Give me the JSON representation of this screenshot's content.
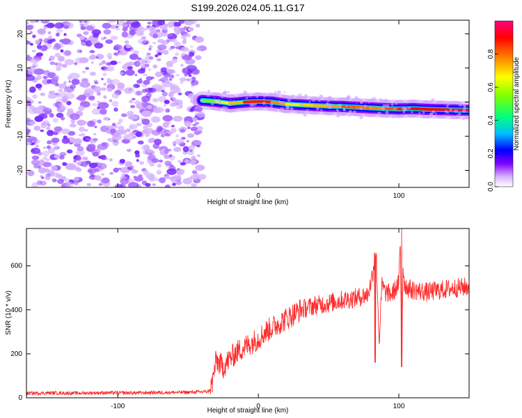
{
  "figure_title": "S199.2026.024.05.11.G17",
  "chart_data": [
    {
      "type": "heatmap",
      "panel": "spectrogram",
      "title": "S199.2026.024.05.11.G17",
      "xlabel": "Height of straight line (km)",
      "ylabel": "Frequency (Hz)",
      "xlim": [
        -165,
        150
      ],
      "ylim": [
        -25,
        24
      ],
      "xticks": [
        -100,
        0,
        100
      ],
      "xtick_labels": [
        "-100",
        "0",
        "100"
      ],
      "yticks": [
        -20,
        -10,
        0,
        10,
        20
      ],
      "ytick_labels": [
        "-20",
        "-10",
        "0",
        "10",
        "20"
      ],
      "noise_region_x": [
        -165,
        -40
      ],
      "signal_ridge": {
        "x": [
          -40,
          -30,
          -20,
          -10,
          0,
          10,
          20,
          30,
          40,
          50,
          60,
          70,
          80,
          90,
          100,
          110,
          120,
          130,
          140,
          150
        ],
        "frequency_hz": [
          0.5,
          0.2,
          -0.4,
          0.0,
          0.2,
          0.0,
          -0.6,
          -0.8,
          -1.0,
          -1.2,
          -1.3,
          -1.5,
          -1.7,
          -1.9,
          -2.0,
          -1.9,
          -2.1,
          -2.2,
          -2.3,
          -2.4
        ],
        "peak_amplitude": [
          0.35,
          0.7,
          0.6,
          0.85,
          0.9,
          0.85,
          0.7,
          0.65,
          0.75,
          0.7,
          0.8,
          0.85,
          0.75,
          0.8,
          0.85,
          0.9,
          0.9,
          0.92,
          0.95,
          0.95
        ]
      },
      "colorbar": {
        "label": "Normalized spectral amplitude",
        "range": [
          0.0,
          1.0
        ],
        "ticks": [
          0.0,
          0.2,
          0.4,
          0.6,
          0.8
        ],
        "tick_labels": [
          "0.0",
          "0.2",
          "0.4",
          "0.6",
          "0.8"
        ],
        "colors": [
          "#ffffff",
          "#e6ccff",
          "#b266ff",
          "#6600ff",
          "#0000ff",
          "#00bfff",
          "#00ff7f",
          "#7fff00",
          "#ffff00",
          "#ff8000",
          "#ff0000",
          "#ff0080"
        ]
      }
    },
    {
      "type": "line",
      "panel": "snr",
      "title": "",
      "xlabel": "Height of straight line (km)",
      "ylabel": "SNR (10 * v/v)",
      "xlim": [
        -165,
        150
      ],
      "ylim": [
        0,
        770
      ],
      "xticks": [
        -100,
        0,
        100
      ],
      "xtick_labels": [
        "-100",
        "0",
        "100"
      ],
      "yticks": [
        0,
        200,
        400,
        600
      ],
      "ytick_labels": [
        "0",
        "200",
        "400",
        "600"
      ],
      "color": "#ff2a2a",
      "series": [
        {
          "name": "SNR",
          "x": [
            -165,
            -150,
            -130,
            -110,
            -90,
            -70,
            -50,
            -40,
            -35,
            -33,
            -30,
            -25,
            -20,
            -15,
            -10,
            -5,
            0,
            5,
            10,
            15,
            20,
            25,
            30,
            40,
            50,
            60,
            70,
            78,
            80,
            82,
            84,
            86,
            88,
            90,
            95,
            100,
            101,
            102,
            103,
            104,
            106,
            110,
            120,
            130,
            140,
            150
          ],
          "y": [
            20,
            22,
            21,
            23,
            22,
            24,
            25,
            27,
            30,
            60,
            170,
            140,
            180,
            210,
            230,
            250,
            270,
            300,
            320,
            340,
            360,
            380,
            400,
            420,
            430,
            445,
            455,
            470,
            520,
            590,
            640,
            250,
            520,
            480,
            470,
            520,
            700,
            200,
            600,
            520,
            500,
            490,
            480,
            490,
            500,
            505
          ]
        }
      ],
      "spike_events": [
        {
          "x": 83,
          "y_max": 660,
          "y_min": 160
        },
        {
          "x": 102,
          "y_max": 770,
          "y_min": 140
        }
      ]
    }
  ]
}
